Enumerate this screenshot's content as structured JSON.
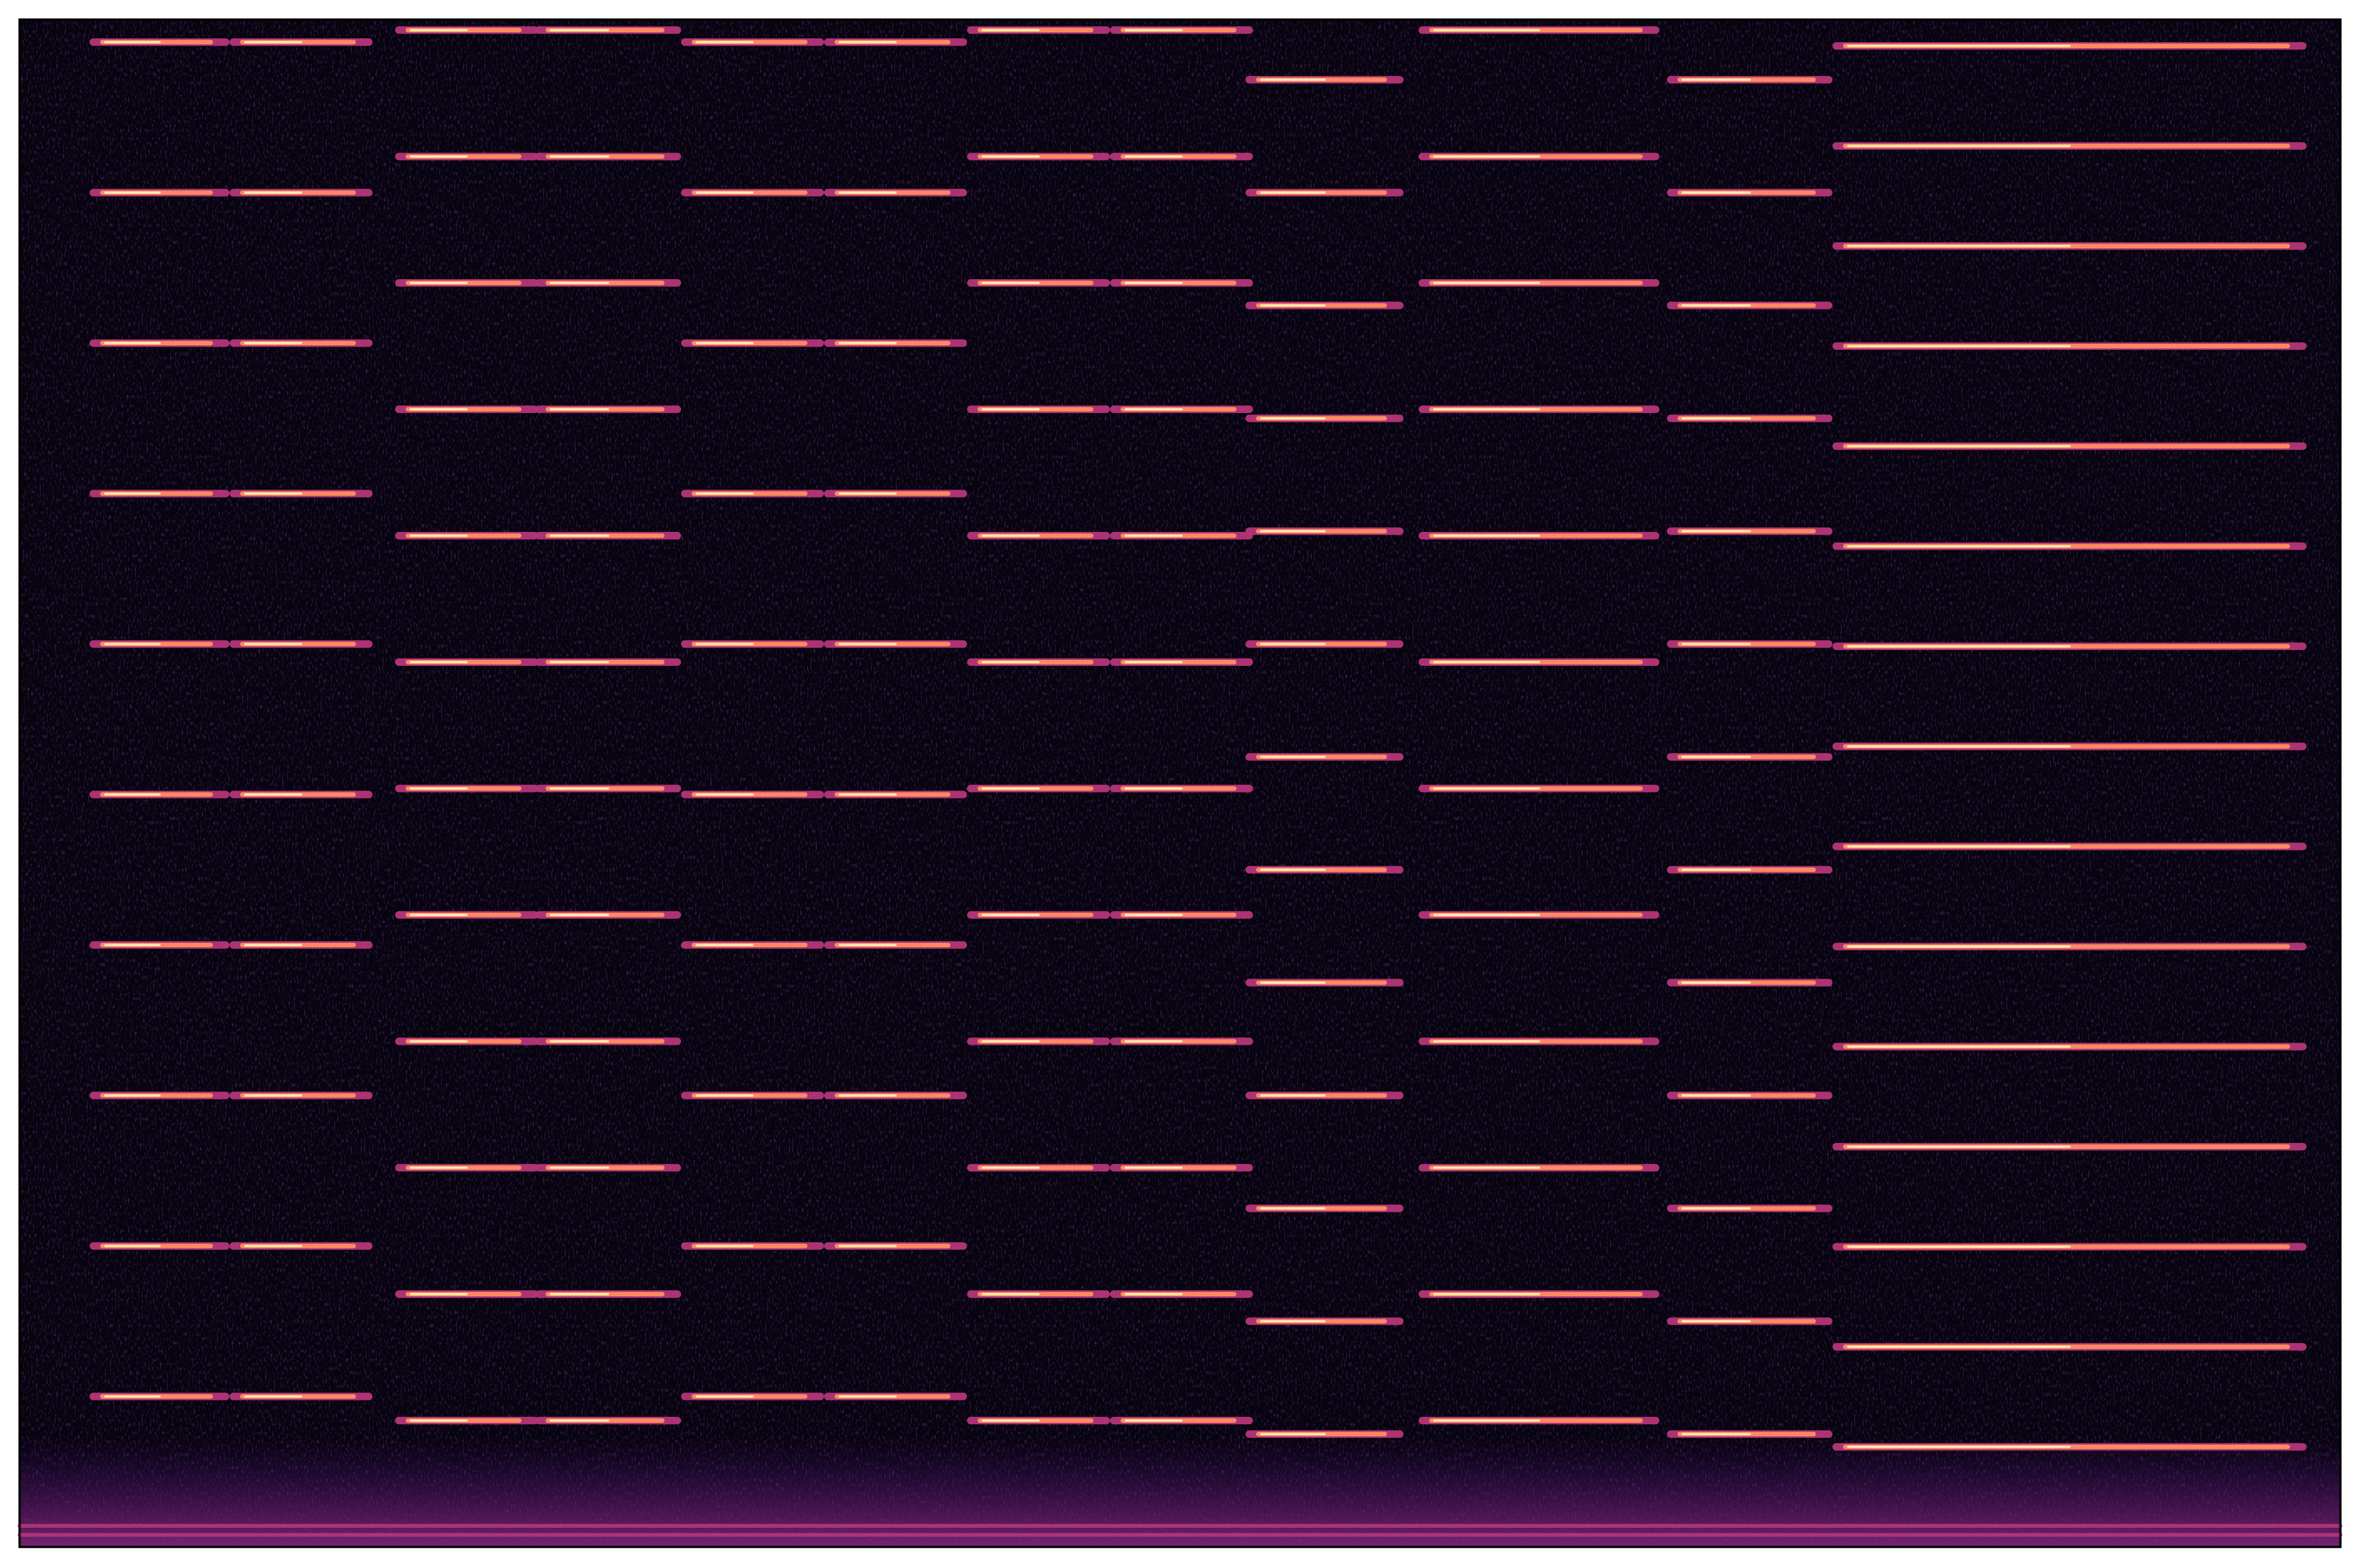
{
  "chart_data": {
    "type": "heatmap",
    "subtype": "spectrogram",
    "title": "",
    "xlabel": "",
    "ylabel": "",
    "axes_visible": false,
    "ticks": false,
    "grid": false,
    "colormap": "magma",
    "colors": {
      "background": "#07030f",
      "low": "#3b0f70",
      "mid": "#b5367a",
      "high": "#fc8961",
      "peak": "#fcfdbf"
    },
    "xlim": [
      0,
      1542
    ],
    "ylim": [
      0,
      1015
    ],
    "notes": [
      {
        "t0": 49,
        "t1": 137,
        "f0": 100,
        "harmonics": 10
      },
      {
        "t0": 142,
        "t1": 232,
        "f0": 100,
        "harmonics": 10
      },
      {
        "t0": 252,
        "t1": 342,
        "f0": 84,
        "harmonics": 12
      },
      {
        "t0": 345,
        "t1": 437,
        "f0": 84,
        "harmonics": 12
      },
      {
        "t0": 442,
        "t1": 532,
        "f0": 100,
        "harmonics": 10
      },
      {
        "t0": 537,
        "t1": 627,
        "f0": 100,
        "harmonics": 10
      },
      {
        "t0": 632,
        "t1": 722,
        "f0": 84,
        "harmonics": 12
      },
      {
        "t0": 727,
        "t1": 817,
        "f0": 84,
        "harmonics": 12
      },
      {
        "t0": 817,
        "t1": 917,
        "f0": 75,
        "harmonics": 13
      },
      {
        "t0": 932,
        "t1": 1087,
        "f0": 84,
        "harmonics": 12
      },
      {
        "t0": 1097,
        "t1": 1202,
        "f0": 75,
        "harmonics": 13
      },
      {
        "t0": 1207,
        "t1": 1517,
        "f0": 66.5,
        "harmonics": 15
      }
    ],
    "steady_lines": [
      {
        "f": 8
      },
      {
        "f": 14
      }
    ]
  }
}
